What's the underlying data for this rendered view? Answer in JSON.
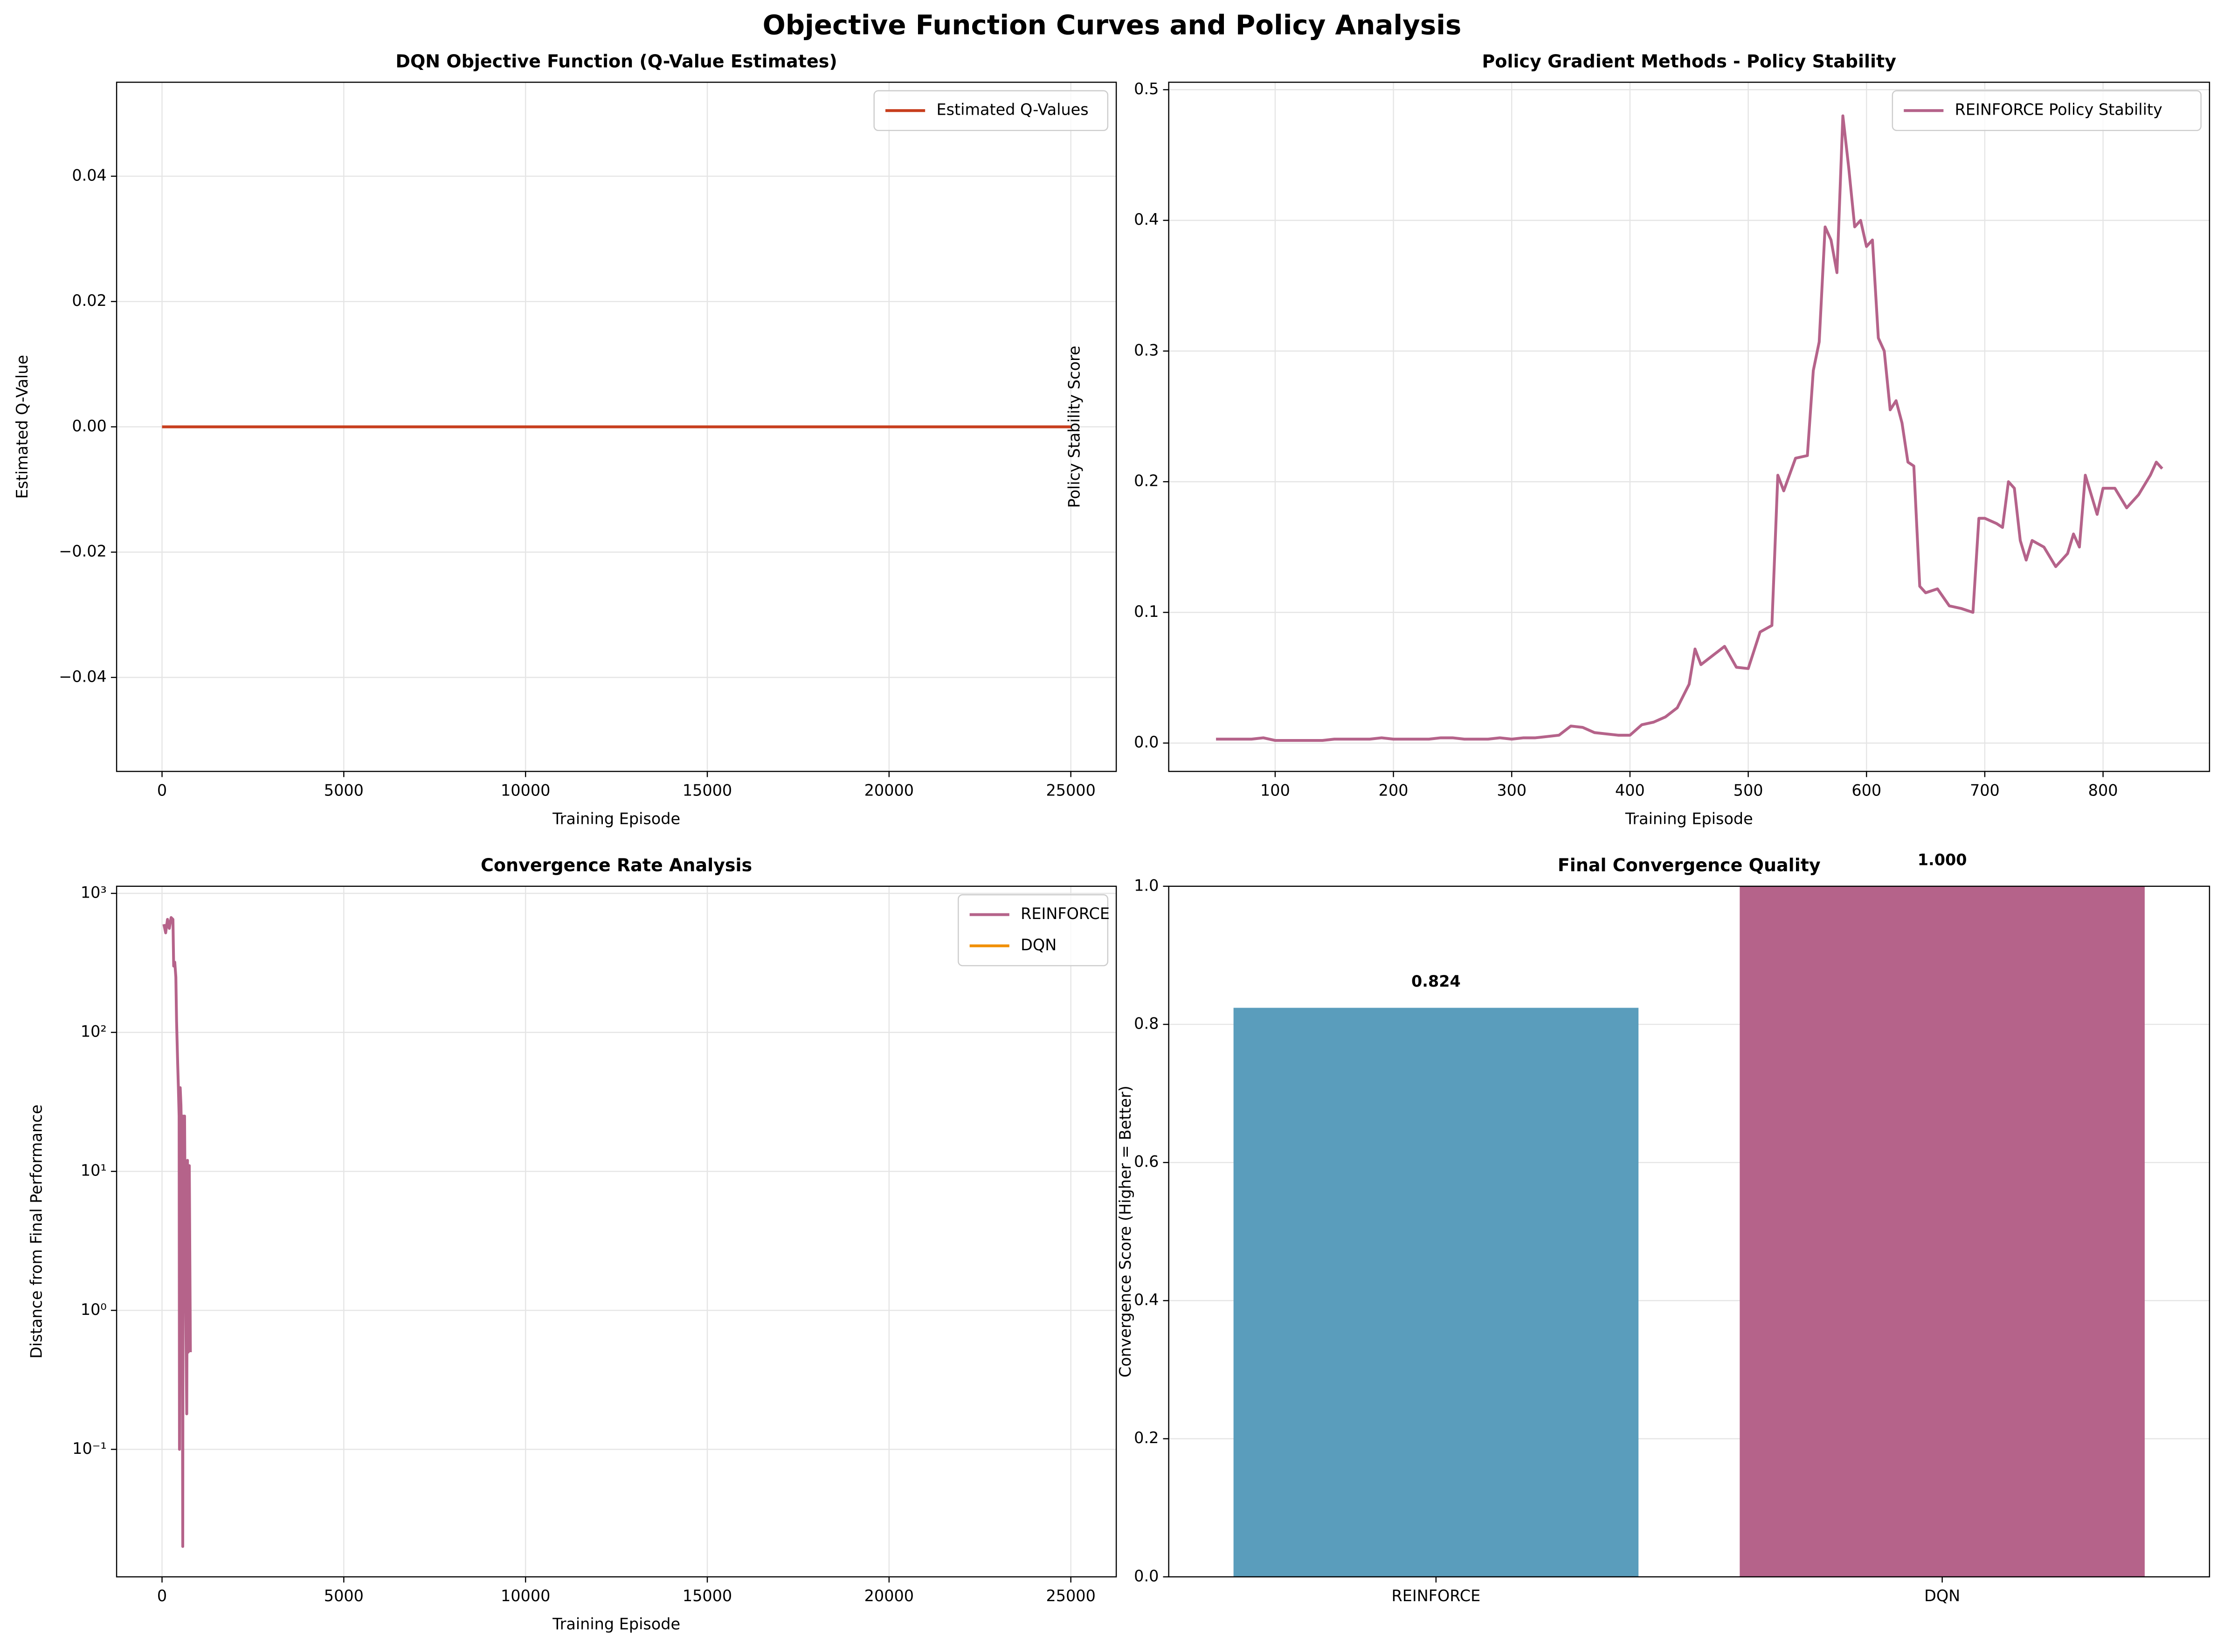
{
  "title": "Objective Function Curves and Policy Analysis",
  "chart_data": [
    {
      "type": "line",
      "title": "DQN Objective Function (Q-Value Estimates)",
      "xlabel": "Training Episode",
      "ylabel": "Estimated Q-Value",
      "xlim": [
        -1250,
        26250
      ],
      "ylim": [
        -0.055,
        0.055
      ],
      "xticks": [
        0,
        5000,
        10000,
        15000,
        20000,
        25000
      ],
      "yticks": [
        {
          "value": -0.04,
          "label": "−0.04"
        },
        {
          "value": -0.02,
          "label": "−0.02"
        },
        {
          "value": 0,
          "label": "0.00"
        },
        {
          "value": 0.02,
          "label": "0.02"
        },
        {
          "value": 0.04,
          "label": "0.04"
        }
      ],
      "grid": true,
      "legend": "upper right",
      "series": [
        {
          "name": "Estimated Q-Values",
          "color": "#c73e1d",
          "x": [
            0,
            5000,
            10000,
            15000,
            20000,
            25000
          ],
          "values": [
            0,
            0,
            0,
            0,
            0,
            0
          ]
        }
      ]
    },
    {
      "type": "line",
      "title": "Policy Gradient Methods - Policy Stability",
      "xlabel": "Training Episode",
      "ylabel": "Policy Stability Score",
      "xlim": [
        10,
        890
      ],
      "ylim": [
        -0.0217,
        0.5057
      ],
      "xticks": [
        100,
        200,
        300,
        400,
        500,
        600,
        700,
        800
      ],
      "yticks": [
        {
          "value": 0,
          "label": "0.0"
        },
        {
          "value": 0.1,
          "label": "0.1"
        },
        {
          "value": 0.2,
          "label": "0.2"
        },
        {
          "value": 0.3,
          "label": "0.3"
        },
        {
          "value": 0.4,
          "label": "0.4"
        },
        {
          "value": 0.5,
          "label": "0.5"
        }
      ],
      "grid": true,
      "legend": "upper right",
      "series": [
        {
          "name": "REINFORCE Policy Stability",
          "color": "#b5638a",
          "x": [
            50,
            60,
            70,
            80,
            90,
            100,
            110,
            120,
            130,
            140,
            150,
            160,
            170,
            180,
            190,
            200,
            210,
            220,
            230,
            240,
            250,
            260,
            270,
            280,
            290,
            300,
            310,
            320,
            330,
            340,
            350,
            360,
            370,
            380,
            390,
            400,
            410,
            420,
            430,
            440,
            450,
            455,
            460,
            470,
            480,
            490,
            500,
            510,
            520,
            525,
            530,
            540,
            550,
            555,
            560,
            565,
            570,
            575,
            580,
            585,
            590,
            595,
            600,
            605,
            610,
            615,
            620,
            625,
            630,
            635,
            640,
            645,
            650,
            660,
            670,
            680,
            690,
            695,
            700,
            710,
            715,
            720,
            725,
            730,
            735,
            740,
            750,
            760,
            770,
            775,
            780,
            785,
            790,
            795,
            800,
            810,
            820,
            830,
            840,
            845,
            850
          ],
          "values": [
            0.003,
            0.003,
            0.003,
            0.003,
            0.004,
            0.002,
            0.002,
            0.002,
            0.002,
            0.002,
            0.003,
            0.003,
            0.003,
            0.003,
            0.004,
            0.003,
            0.003,
            0.003,
            0.003,
            0.004,
            0.004,
            0.003,
            0.003,
            0.003,
            0.004,
            0.003,
            0.004,
            0.004,
            0.005,
            0.006,
            0.013,
            0.012,
            0.008,
            0.007,
            0.006,
            0.006,
            0.014,
            0.016,
            0.02,
            0.027,
            0.045,
            0.072,
            0.06,
            0.067,
            0.074,
            0.058,
            0.057,
            0.085,
            0.09,
            0.205,
            0.193,
            0.218,
            0.22,
            0.285,
            0.307,
            0.395,
            0.385,
            0.36,
            0.48,
            0.44,
            0.395,
            0.4,
            0.38,
            0.385,
            0.31,
            0.3,
            0.255,
            0.262,
            0.245,
            0.215,
            0.212,
            0.12,
            0.115,
            0.118,
            0.105,
            0.103,
            0.1,
            0.172,
            0.172,
            0.168,
            0.165,
            0.2,
            0.195,
            0.155,
            0.14,
            0.155,
            0.15,
            0.135,
            0.145,
            0.16,
            0.15,
            0.205,
            0.19,
            0.175,
            0.195,
            0.195,
            0.18,
            0.19,
            0.205,
            0.215,
            0.21
          ]
        }
      ]
    },
    {
      "type": "line",
      "title": "Convergence Rate Analysis",
      "xlabel": "Training Episode",
      "ylabel": "Distance from Final Performance",
      "xlim": [
        -1250,
        26250
      ],
      "ylim": [
        0.0121,
        1125
      ],
      "yscale": "log",
      "xticks": [
        0,
        5000,
        10000,
        15000,
        20000,
        25000
      ],
      "yticks": [
        {
          "value": 0.1,
          "label": "10⁻¹"
        },
        {
          "value": 1,
          "label": "10⁰"
        },
        {
          "value": 10,
          "label": "10¹"
        },
        {
          "value": 100,
          "label": "10²"
        },
        {
          "value": 1000,
          "label": "10³"
        }
      ],
      "grid": true,
      "legend": "upper right",
      "series": [
        {
          "name": "REINFORCE",
          "color": "#b5638a",
          "x": [
            50,
            100,
            150,
            200,
            250,
            300,
            320,
            350,
            380,
            400,
            430,
            450,
            470,
            480,
            500,
            520,
            550,
            570,
            580,
            600,
            620,
            650,
            680,
            700,
            720,
            750,
            780
          ],
          "values": [
            600,
            520,
            650,
            560,
            670,
            650,
            300,
            320,
            250,
            120,
            60,
            40,
            25,
            0.1,
            40,
            30,
            12,
            0.02,
            25,
            10,
            25,
            1.2,
            0.18,
            12,
            0.5,
            11,
            0.5
          ]
        },
        {
          "name": "DQN",
          "color": "#f18f01",
          "x": [
            0,
            25000
          ],
          "values": [
            null,
            null
          ]
        }
      ]
    },
    {
      "type": "bar",
      "title": "Final Convergence Quality",
      "ylabel": "Convergence Score (Higher = Better)",
      "categories": [
        "REINFORCE",
        "DQN"
      ],
      "values": [
        0.824,
        1.0
      ],
      "value_labels": [
        "0.824",
        "1.000"
      ],
      "colors": [
        "#5a9dbc",
        "#b5638a"
      ],
      "ylim": [
        0,
        1
      ],
      "yticks": [
        {
          "value": 0,
          "label": "0.0"
        },
        {
          "value": 0.2,
          "label": "0.2"
        },
        {
          "value": 0.4,
          "label": "0.4"
        },
        {
          "value": 0.6,
          "label": "0.6"
        },
        {
          "value": 0.8,
          "label": "0.8"
        },
        {
          "value": 1,
          "label": "1.0"
        }
      ],
      "grid": true
    }
  ]
}
